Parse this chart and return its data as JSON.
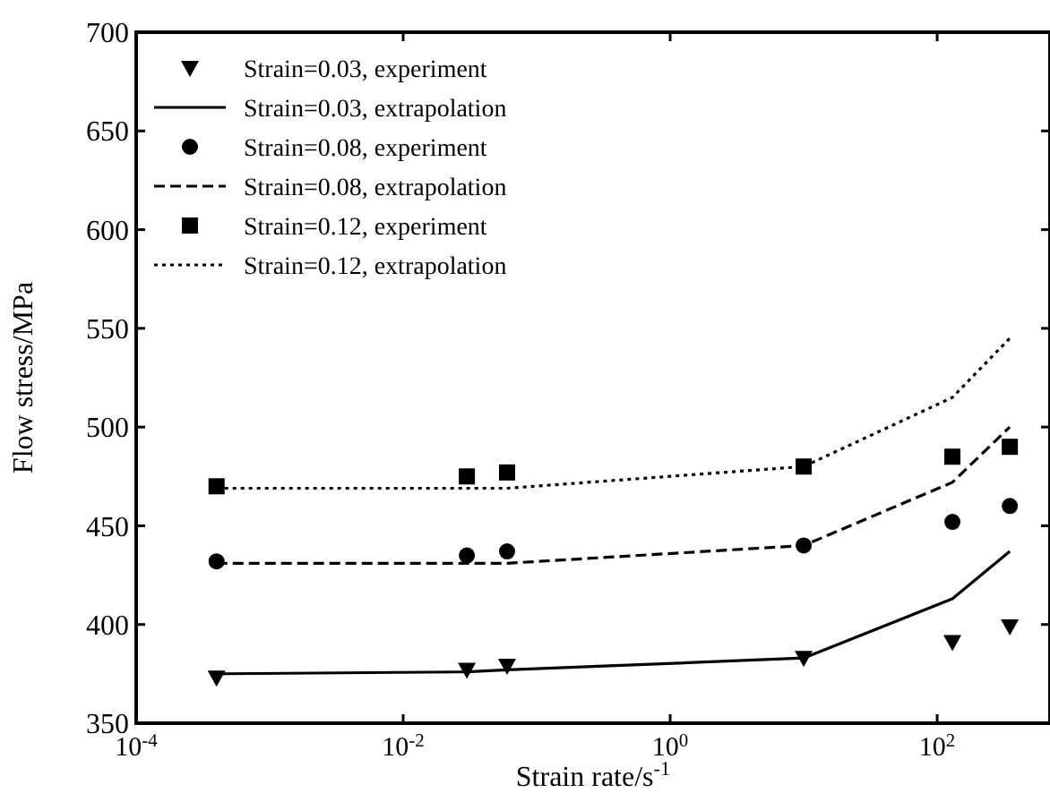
{
  "chart_data": {
    "type": "scatter",
    "xlabel": "Strain rate/s$^{-1}$",
    "ylabel": "Flow stress/MPa",
    "log": "x",
    "x": [
      0.0004,
      0.03,
      0.06,
      10,
      130,
      350
    ],
    "xlim": [
      0.0001,
      700
    ],
    "xticks": [
      {
        "value": 0.0001,
        "label": "10$^{-4}$"
      },
      {
        "value": 0.01,
        "label": "10$^{-2}$"
      },
      {
        "value": 1,
        "label": "10$^{0}$"
      },
      {
        "value": 100,
        "label": "10$^{2}$"
      }
    ],
    "ylim": [
      350,
      700
    ],
    "yticks": [
      350,
      400,
      450,
      500,
      550,
      600,
      650,
      700
    ],
    "grid": false,
    "legend": "top left",
    "series": [
      {
        "name": "Strain=0.03, experiment",
        "type": "scatter",
        "marker": "triangle",
        "color": "#000000",
        "values": [
          373,
          377,
          379,
          383,
          391,
          399
        ]
      },
      {
        "name": "Strain=0.03, extrapolation",
        "type": "line",
        "line_style": "solid",
        "color": "#000000",
        "values": [
          375,
          376,
          377,
          383,
          413,
          437
        ]
      },
      {
        "name": "Strain=0.08, experiment",
        "type": "scatter",
        "marker": "circle",
        "color": "#000000",
        "values": [
          432,
          435,
          437,
          440,
          452,
          460
        ]
      },
      {
        "name": "Strain=0.08, extrapolation",
        "type": "line",
        "line_style": "dashed",
        "color": "#000000",
        "values": [
          431,
          431,
          431,
          440,
          472,
          500
        ]
      },
      {
        "name": "Strain=0.12, experiment",
        "type": "scatter",
        "marker": "square",
        "color": "#000000",
        "values": [
          470,
          475,
          477,
          480,
          485,
          490
        ]
      },
      {
        "name": "Strain=0.12, extrapolation",
        "type": "line",
        "line_style": "dotted",
        "color": "#000000",
        "values": [
          469,
          469,
          469,
          480,
          515,
          545
        ]
      }
    ]
  }
}
